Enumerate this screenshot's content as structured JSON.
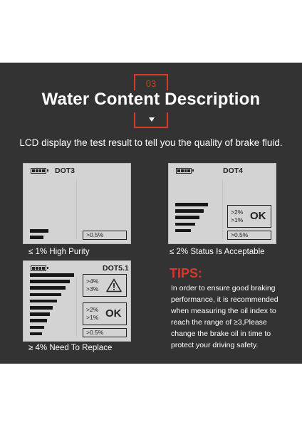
{
  "header": {
    "badge": "03",
    "title": "Water Content Description",
    "subtitle": "LCD display the test result to tell you the quality of brake fluid."
  },
  "lcds": [
    {
      "grade": "DOT3",
      "readings": [],
      "indicator": ">0.5%",
      "status_label": "",
      "caption": "≤ 1% High Purity"
    },
    {
      "grade": "DOT4",
      "readings": [
        ">2%",
        ">1%"
      ],
      "indicator": ">0.5%",
      "status_label": "OK",
      "caption": "≤ 2% Status Is Acceptable"
    },
    {
      "grade": "DOT5.1",
      "readings_top": [
        ">4%",
        ">3%"
      ],
      "readings": [
        ">2%",
        ">1%"
      ],
      "indicator": ">0.5%",
      "status_label": "OK",
      "caption": "≥ 4% Need To Replace"
    }
  ],
  "tips": {
    "heading": "TIPS:",
    "lines": [
      "In order to ensure good braking",
      "performance, it is recommended",
      "when measuring the oil index to",
      "reach the range of ≥3,Please",
      "change the brake oil in time to",
      " protect your driving safety."
    ]
  },
  "icons": {
    "battery": "battery-full-icon",
    "warning": "warning-triangle-icon",
    "down_arrow": "down-arrow-icon"
  },
  "colors": {
    "accent": "#d53a2a",
    "panel": "#333333",
    "lcd": "#d3d3d3"
  }
}
